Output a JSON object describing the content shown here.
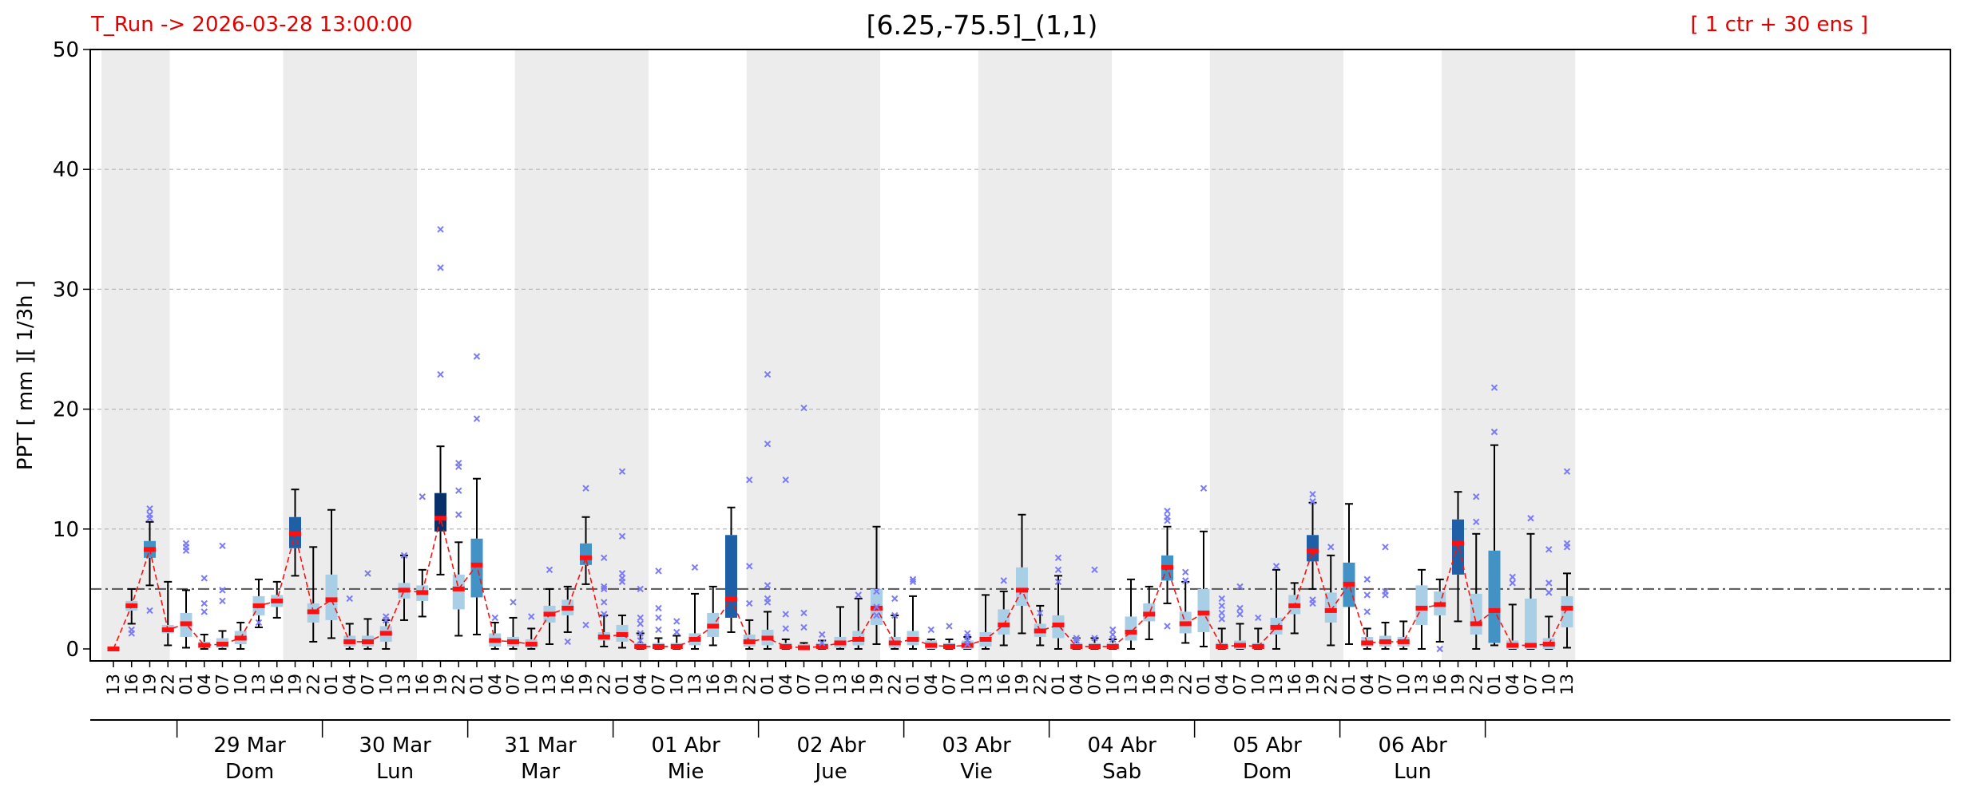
{
  "header": {
    "run_label": "T_Run -> 2026-03-28  13:00:00",
    "title": "[6.25,-75.5]_(1,1)",
    "ens_label": "[ 1 ctr + 30 ens ]"
  },
  "colors": {
    "header_text": "#e00000",
    "median": "#ff1010",
    "outlier": "#7b7bf5",
    "threshold_line": "#555555",
    "night_shade": "#ececec",
    "box_light": "#a9cfe6",
    "box_mid": "#4292c6",
    "box_dark": "#1f5fa5",
    "box_darkest": "#08306b"
  },
  "chart_data": {
    "type": "box",
    "ylabel": "PPT  [ mm ][ 1/3h ]",
    "ylim": [
      -1,
      50
    ],
    "yticks": [
      0,
      10,
      20,
      30,
      40,
      50
    ],
    "grid": "horizontal dashed",
    "threshold": 5,
    "x_hours": [
      "13",
      "16",
      "19",
      "22",
      "01",
      "04",
      "07",
      "10",
      "13",
      "16",
      "19",
      "22",
      "01",
      "04",
      "07",
      "10",
      "13",
      "16",
      "19",
      "22",
      "01",
      "04",
      "07",
      "10",
      "13",
      "16",
      "19",
      "22",
      "01",
      "04",
      "07",
      "10",
      "13",
      "16",
      "19",
      "22",
      "01",
      "04",
      "07",
      "10",
      "13",
      "16",
      "19",
      "22",
      "01",
      "04",
      "07",
      "10",
      "13",
      "16",
      "19",
      "22",
      "01",
      "04",
      "07",
      "10",
      "13",
      "16",
      "19",
      "22",
      "01",
      "04",
      "07",
      "10",
      "13",
      "16",
      "19",
      "22",
      "01",
      "04",
      "07",
      "10",
      "13",
      "16",
      "19",
      "22",
      "01",
      "04",
      "07",
      "10",
      "13"
    ],
    "day_labels": [
      {
        "date": "29 Mar",
        "day": "Dom"
      },
      {
        "date": "30 Mar",
        "day": "Lun"
      },
      {
        "date": "31 Mar",
        "day": "Mar"
      },
      {
        "date": "01 Abr",
        "day": "Mie"
      },
      {
        "date": "02 Abr",
        "day": "Jue"
      },
      {
        "date": "03 Abr",
        "day": "Vie"
      },
      {
        "date": "04 Abr",
        "day": "Sab"
      },
      {
        "date": "05 Abr",
        "day": "Dom"
      },
      {
        "date": "06 Abr",
        "day": "Lun"
      }
    ],
    "median": [
      0,
      3.6,
      8.3,
      1.6,
      2.1,
      0.3,
      0.4,
      0.9,
      3.6,
      4,
      9.6,
      3.1,
      4.1,
      0.6,
      0.6,
      1.3,
      4.9,
      4.7,
      10.9,
      5,
      7,
      0.7,
      0.6,
      0.4,
      2.9,
      3.4,
      7.6,
      1,
      1.2,
      0.2,
      0.2,
      0.2,
      0.8,
      1.9,
      4.2,
      0.6,
      0.9,
      0.2,
      0.1,
      0.2,
      0.5,
      0.8,
      3.4,
      0.5,
      0.8,
      0.3,
      0.2,
      0.3,
      0.8,
      2,
      4.9,
      1.5,
      2,
      0.2,
      0.2,
      0.2,
      1.4,
      2.9,
      6.8,
      2.1,
      3,
      0.2,
      0.3,
      0.2,
      1.8,
      3.6,
      8.2,
      3.2,
      5.4,
      0.5,
      0.6,
      0.6,
      3.4,
      3.7,
      8.8,
      2.1,
      3.2,
      0.3,
      0.3,
      0.4,
      3.4
    ],
    "q1": [
      0,
      3.2,
      7.6,
      1.3,
      1,
      0.1,
      0.1,
      0.4,
      2.8,
      3.5,
      8.4,
      2.2,
      2.4,
      0.2,
      0.2,
      0.6,
      4.2,
      4,
      9.8,
      3.3,
      4.3,
      0.2,
      0.2,
      0.1,
      2.2,
      2.8,
      7,
      0.7,
      0.6,
      0,
      0,
      0,
      0.3,
      1,
      2.6,
      0.2,
      0.3,
      0,
      0,
      0,
      0.1,
      0.3,
      2,
      0.1,
      0.3,
      0,
      0,
      0,
      0.2,
      1.2,
      3.6,
      1,
      0.9,
      0,
      0,
      0,
      0.7,
      2.3,
      5.7,
      1.3,
      1.4,
      0,
      0,
      0,
      1.2,
      2.9,
      7.3,
      2.2,
      3.5,
      0.2,
      0.2,
      0.2,
      2,
      2.8,
      6.2,
      1.2,
      0.5,
      0,
      0,
      0,
      1.8
    ],
    "q3": [
      0,
      4,
      9,
      2,
      3,
      0.6,
      0.9,
      1.5,
      4.4,
      4.5,
      11,
      3.8,
      6.2,
      1.1,
      1.1,
      1.9,
      5.5,
      5.3,
      13,
      6.2,
      9.2,
      1.3,
      1,
      0.8,
      3.6,
      4.1,
      8.8,
      1.4,
      2,
      0.5,
      0.5,
      0.5,
      1.3,
      3,
      9.5,
      1.2,
      1.6,
      0.5,
      0.4,
      0.5,
      1,
      1.5,
      5,
      1,
      1.5,
      0.7,
      0.5,
      0.7,
      1.4,
      3.3,
      6.8,
      2.1,
      2.8,
      0.5,
      0.5,
      0.5,
      2.7,
      3.8,
      7.8,
      3.1,
      5,
      0.5,
      0.7,
      0.5,
      2.6,
      4.5,
      9.5,
      4.7,
      7.2,
      1,
      1.1,
      1,
      5.3,
      4.8,
      10.8,
      4.6,
      8.2,
      0.7,
      4.2,
      0.9,
      4.4
    ],
    "whisker_lo": [
      0,
      2.1,
      5.3,
      0.3,
      0.1,
      0,
      0,
      0,
      1.8,
      2.6,
      6.1,
      0.6,
      0.9,
      0,
      0,
      0,
      2.4,
      2.7,
      6.2,
      1.1,
      1.2,
      0,
      0,
      0,
      0.4,
      1.4,
      5.4,
      0.2,
      0.1,
      0,
      0,
      0,
      0,
      0.3,
      1.4,
      0,
      0,
      0,
      0,
      0,
      0,
      0,
      0.4,
      0,
      0,
      0,
      0,
      0,
      0,
      0.3,
      1.3,
      0.3,
      0,
      0,
      0,
      0,
      0,
      0.8,
      3.8,
      0.5,
      0.2,
      0,
      0,
      0,
      0,
      1.3,
      5,
      0.3,
      0.4,
      0,
      0,
      0,
      0,
      0.6,
      2.3,
      0,
      0.3,
      0,
      0,
      0,
      0.1
    ],
    "whisker_hi": [
      0,
      5,
      10.6,
      5.6,
      4.9,
      1.2,
      1.5,
      2.2,
      5.8,
      5.6,
      13.3,
      8.5,
      11.6,
      2.1,
      2.5,
      2.4,
      7.8,
      6.6,
      16.9,
      8.9,
      14.2,
      2.2,
      2.6,
      1.7,
      5,
      5.2,
      11,
      2.8,
      2.8,
      1.3,
      0.9,
      1.1,
      4.6,
      5.2,
      11.8,
      2.4,
      3.1,
      0.8,
      0.5,
      0.7,
      3.5,
      4.2,
      10.2,
      2.8,
      4.4,
      0.8,
      0.8,
      1,
      4.5,
      4.8,
      11.2,
      3.6,
      6.1,
      0.9,
      0.9,
      0.8,
      5.8,
      5.2,
      10.2,
      5.6,
      9.8,
      1.7,
      2.1,
      1.7,
      6.6,
      5.5,
      12.2,
      7.8,
      12.1,
      1.7,
      2.2,
      2.3,
      6.6,
      5.8,
      13.1,
      9.6,
      17,
      3.7,
      9.6,
      2.7,
      6.3
    ],
    "outliers": [
      [
        2,
        11.7
      ],
      [
        2,
        11.2
      ],
      [
        2,
        10.9
      ],
      [
        2,
        3.2
      ],
      [
        1,
        1.3
      ],
      [
        1,
        1.6
      ],
      [
        4,
        8.8
      ],
      [
        4,
        8.5
      ],
      [
        4,
        8.2
      ],
      [
        5,
        5.9
      ],
      [
        5,
        3.8
      ],
      [
        5,
        3.1
      ],
      [
        6,
        8.6
      ],
      [
        6,
        4.9
      ],
      [
        6,
        4
      ],
      [
        8,
        2.2
      ],
      [
        13,
        4.2
      ],
      [
        14,
        6.3
      ],
      [
        15,
        2.7
      ],
      [
        15,
        2.4
      ],
      [
        16,
        7.8
      ],
      [
        17,
        12.7
      ],
      [
        18,
        35
      ],
      [
        18,
        31.8
      ],
      [
        18,
        22.9
      ],
      [
        19,
        15.5
      ],
      [
        19,
        15.2
      ],
      [
        19,
        13.2
      ],
      [
        19,
        11.2
      ],
      [
        20,
        24.4
      ],
      [
        20,
        19.2
      ],
      [
        21,
        2.6
      ],
      [
        22,
        3.9
      ],
      [
        23,
        2.7
      ],
      [
        24,
        6.6
      ],
      [
        25,
        0.6
      ],
      [
        26,
        13.4
      ],
      [
        26,
        2
      ],
      [
        27,
        7.6
      ],
      [
        27,
        5.2
      ],
      [
        27,
        5
      ],
      [
        27,
        3.9
      ],
      [
        27,
        2.9
      ],
      [
        28,
        14.8
      ],
      [
        28,
        9.4
      ],
      [
        28,
        6.3
      ],
      [
        28,
        5.9
      ],
      [
        28,
        5.6
      ],
      [
        29,
        5
      ],
      [
        29,
        2.6
      ],
      [
        29,
        2.1
      ],
      [
        29,
        1.3
      ],
      [
        29,
        0.7
      ],
      [
        30,
        6.5
      ],
      [
        30,
        3.4
      ],
      [
        30,
        2.6
      ],
      [
        30,
        1.6
      ],
      [
        31,
        2.3
      ],
      [
        31,
        1.4
      ],
      [
        32,
        6.8
      ],
      [
        35,
        14.1
      ],
      [
        35,
        6.9
      ],
      [
        35,
        3.8
      ],
      [
        36,
        22.9
      ],
      [
        36,
        17.1
      ],
      [
        36,
        5.3
      ],
      [
        36,
        4.2
      ],
      [
        36,
        3.9
      ],
      [
        37,
        14.1
      ],
      [
        37,
        2.9
      ],
      [
        37,
        1.7
      ],
      [
        38,
        20.1
      ],
      [
        38,
        3
      ],
      [
        38,
        1.8
      ],
      [
        39,
        1.2
      ],
      [
        39,
        0.5
      ],
      [
        41,
        4.5
      ],
      [
        42,
        4.8
      ],
      [
        42,
        3.5
      ],
      [
        42,
        2.8
      ],
      [
        43,
        4.2
      ],
      [
        43,
        2.8
      ],
      [
        44,
        5.8
      ],
      [
        44,
        5.6
      ],
      [
        45,
        1.6
      ],
      [
        46,
        1.9
      ],
      [
        47,
        1.3
      ],
      [
        47,
        1
      ],
      [
        47,
        0.7
      ],
      [
        47,
        0.4
      ],
      [
        49,
        5.7
      ],
      [
        51,
        3
      ],
      [
        52,
        7.6
      ],
      [
        52,
        6.6
      ],
      [
        52,
        5.6
      ],
      [
        53,
        0.9
      ],
      [
        53,
        0.7
      ],
      [
        54,
        6.6
      ],
      [
        54,
        0.9
      ],
      [
        55,
        1.6
      ],
      [
        55,
        1.2
      ],
      [
        55,
        0.8
      ],
      [
        58,
        11.5
      ],
      [
        58,
        11
      ],
      [
        58,
        10.7
      ],
      [
        58,
        1.9
      ],
      [
        59,
        6.4
      ],
      [
        59,
        5.7
      ],
      [
        60,
        13.4
      ],
      [
        61,
        4.2
      ],
      [
        61,
        3.6
      ],
      [
        61,
        3
      ],
      [
        61,
        2.5
      ],
      [
        62,
        5.2
      ],
      [
        62,
        3.4
      ],
      [
        62,
        2.9
      ],
      [
        63,
        2.6
      ],
      [
        64,
        6.9
      ],
      [
        66,
        12.9
      ],
      [
        66,
        12.3
      ],
      [
        66,
        4.1
      ],
      [
        66,
        3.8
      ],
      [
        67,
        8.5
      ],
      [
        69,
        5.8
      ],
      [
        69,
        4.5
      ],
      [
        69,
        3.1
      ],
      [
        70,
        8.5
      ],
      [
        70,
        4.8
      ],
      [
        70,
        4.5
      ],
      [
        73,
        0
      ],
      [
        75,
        12.7
      ],
      [
        75,
        10.6
      ],
      [
        76,
        21.8
      ],
      [
        76,
        18.1
      ],
      [
        77,
        6
      ],
      [
        77,
        5.5
      ],
      [
        78,
        10.9
      ],
      [
        79,
        8.3
      ],
      [
        79,
        5.5
      ],
      [
        79,
        4.7
      ],
      [
        80,
        14.8
      ],
      [
        80,
        8.8
      ],
      [
        80,
        8.5
      ]
    ]
  }
}
